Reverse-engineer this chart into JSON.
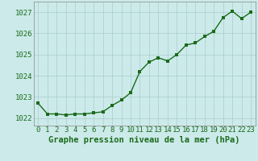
{
  "x": [
    0,
    1,
    2,
    3,
    4,
    5,
    6,
    7,
    8,
    9,
    10,
    11,
    12,
    13,
    14,
    15,
    16,
    17,
    18,
    19,
    20,
    21,
    22,
    23
  ],
  "y": [
    1022.7,
    1022.2,
    1022.2,
    1022.15,
    1022.2,
    1022.2,
    1022.25,
    1022.3,
    1022.6,
    1022.85,
    1023.2,
    1024.2,
    1024.65,
    1024.85,
    1024.7,
    1025.0,
    1025.45,
    1025.55,
    1025.85,
    1026.1,
    1026.75,
    1027.05,
    1026.7,
    1027.0
  ],
  "line_color": "#1a6b1a",
  "marker_color": "#1a6b1a",
  "bg_color": "#cceaea",
  "grid_color": "#aacccc",
  "title": "Graphe pression niveau de la mer (hPa)",
  "ylabel_ticks": [
    1022,
    1023,
    1024,
    1025,
    1026,
    1027
  ],
  "ylim": [
    1021.65,
    1027.5
  ],
  "xlim": [
    -0.5,
    23.5
  ],
  "xtick_labels": [
    "0",
    "1",
    "2",
    "3",
    "4",
    "5",
    "6",
    "7",
    "8",
    "9",
    "10",
    "11",
    "12",
    "13",
    "14",
    "15",
    "16",
    "17",
    "18",
    "19",
    "20",
    "21",
    "22",
    "23"
  ],
  "title_fontsize": 7.5,
  "tick_fontsize": 6.5,
  "line_width": 1.0,
  "marker_size": 2.5
}
